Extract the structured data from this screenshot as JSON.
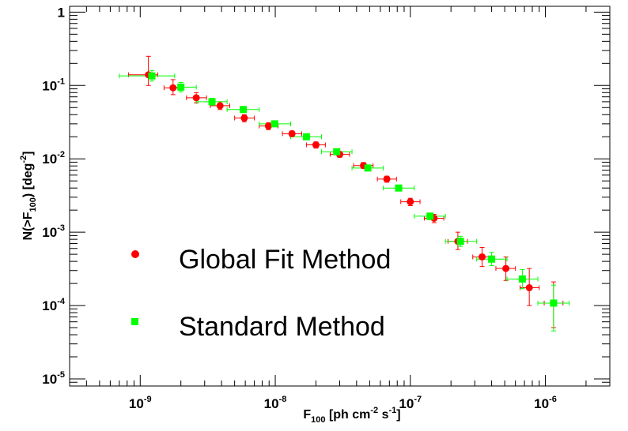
{
  "chart_data": {
    "type": "scatter",
    "title": "",
    "xlabel": "F_{100} [ph cm^{-2} s^{-1}]",
    "ylabel": "N(>F_{100}) [deg^{-2}]",
    "x_scale": "log",
    "y_scale": "log",
    "xlim": [
      3e-10,
      3e-06
    ],
    "ylim": [
      8e-06,
      1.2
    ],
    "grid": false,
    "legend_position": "bottom-left",
    "x_ticks": [
      "10^-9",
      "10^-8",
      "10^-7",
      "10^-6"
    ],
    "y_ticks": [
      "10^-5",
      "10^-4",
      "10^-3",
      "10^-2",
      "10^-1",
      "1"
    ],
    "series": [
      {
        "name": "Global Fit Method",
        "marker": "circle",
        "color": "#ff0000",
        "points": [
          {
            "x": 1.15e-09,
            "y": 0.14,
            "xlo": 8.2e-10,
            "xhi": 1.35e-09,
            "ylo": 0.1,
            "yhi": 0.25
          },
          {
            "x": 1.75e-09,
            "y": 0.093,
            "xlo": 1.5e-09,
            "xhi": 2.05e-09,
            "ylo": 0.075,
            "yhi": 0.12
          },
          {
            "x": 2.6e-09,
            "y": 0.068,
            "xlo": 2.2e-09,
            "xhi": 3.1e-09,
            "ylo": 0.058,
            "yhi": 0.08
          },
          {
            "x": 3.9e-09,
            "y": 0.053,
            "xlo": 3.3e-09,
            "xhi": 4.6e-09,
            "ylo": 0.047,
            "yhi": 0.06
          },
          {
            "x": 5.9e-09,
            "y": 0.036,
            "xlo": 5e-09,
            "xhi": 7e-09,
            "ylo": 0.032,
            "yhi": 0.04
          },
          {
            "x": 8.9e-09,
            "y": 0.028,
            "xlo": 7.6e-09,
            "xhi": 1.05e-08,
            "ylo": 0.025,
            "yhi": 0.031
          },
          {
            "x": 1.33e-08,
            "y": 0.022,
            "xlo": 1.13e-08,
            "xhi": 1.57e-08,
            "ylo": 0.02,
            "yhi": 0.024
          },
          {
            "x": 2e-08,
            "y": 0.0155,
            "xlo": 1.7e-08,
            "xhi": 2.35e-08,
            "ylo": 0.014,
            "yhi": 0.017
          },
          {
            "x": 3e-08,
            "y": 0.0115,
            "xlo": 2.55e-08,
            "xhi": 3.55e-08,
            "ylo": 0.0105,
            "yhi": 0.0126
          },
          {
            "x": 4.5e-08,
            "y": 0.0081,
            "xlo": 3.8e-08,
            "xhi": 5.3e-08,
            "ylo": 0.0074,
            "yhi": 0.0089
          },
          {
            "x": 6.7e-08,
            "y": 0.0053,
            "xlo": 5.7e-08,
            "xhi": 7.9e-08,
            "ylo": 0.0048,
            "yhi": 0.0058
          },
          {
            "x": 1e-07,
            "y": 0.0026,
            "xlo": 8.5e-08,
            "xhi": 1.18e-07,
            "ylo": 0.0023,
            "yhi": 0.0029
          },
          {
            "x": 1.5e-07,
            "y": 0.00155,
            "xlo": 1.27e-07,
            "xhi": 1.77e-07,
            "ylo": 0.00135,
            "yhi": 0.00175
          },
          {
            "x": 2.25e-07,
            "y": 0.00075,
            "xlo": 1.9e-07,
            "xhi": 2.65e-07,
            "ylo": 0.00058,
            "yhi": 0.001
          },
          {
            "x": 3.4e-07,
            "y": 0.00046,
            "xlo": 2.9e-07,
            "xhi": 4e-07,
            "ylo": 0.00034,
            "yhi": 0.00062
          },
          {
            "x": 5.1e-07,
            "y": 0.00032,
            "xlo": 4.3e-07,
            "xhi": 6e-07,
            "ylo": 0.00022,
            "yhi": 0.00046
          },
          {
            "x": 7.6e-07,
            "y": 0.000175,
            "xlo": 6.5e-07,
            "xhi": 9e-07,
            "ylo": 0.0001,
            "yhi": 0.00032
          },
          {
            "x": 1.15e-06,
            "y": 0.000108,
            "xlo": 9.8e-07,
            "xhi": 1.35e-06,
            "ylo": 5e-05,
            "yhi": 0.00021
          }
        ]
      },
      {
        "name": "Standard Method",
        "marker": "square",
        "color": "#00ff00",
        "points": [
          {
            "x": 1.22e-09,
            "y": 0.135,
            "xlo": 7e-10,
            "xhi": 1.8e-09,
            "ylo": 0.115,
            "yhi": 0.16
          },
          {
            "x": 2e-09,
            "y": 0.095,
            "xlo": 1.7e-09,
            "xhi": 2.6e-09,
            "ylo": 0.082,
            "yhi": 0.11
          },
          {
            "x": 3.4e-09,
            "y": 0.06,
            "xlo": 2.6e-09,
            "xhi": 4.4e-09,
            "ylo": 0.054,
            "yhi": 0.067
          },
          {
            "x": 5.8e-09,
            "y": 0.047,
            "xlo": 4.4e-09,
            "xhi": 7.6e-09,
            "ylo": 0.043,
            "yhi": 0.051
          },
          {
            "x": 9.9e-09,
            "y": 0.03,
            "xlo": 7.6e-09,
            "xhi": 1.3e-08,
            "ylo": 0.0278,
            "yhi": 0.0325
          },
          {
            "x": 1.7e-08,
            "y": 0.02,
            "xlo": 1.3e-08,
            "xhi": 2.2e-08,
            "ylo": 0.0186,
            "yhi": 0.0215
          },
          {
            "x": 2.85e-08,
            "y": 0.0125,
            "xlo": 2.2e-08,
            "xhi": 3.7e-08,
            "ylo": 0.0116,
            "yhi": 0.0135
          },
          {
            "x": 4.85e-08,
            "y": 0.0075,
            "xlo": 3.7e-08,
            "xhi": 6.3e-08,
            "ylo": 0.0069,
            "yhi": 0.0081
          },
          {
            "x": 8.2e-08,
            "y": 0.004,
            "xlo": 6.3e-08,
            "xhi": 1.07e-07,
            "ylo": 0.0037,
            "yhi": 0.0043
          },
          {
            "x": 1.4e-07,
            "y": 0.00165,
            "xlo": 1.07e-07,
            "xhi": 1.82e-07,
            "ylo": 0.00148,
            "yhi": 0.00183
          },
          {
            "x": 2.35e-07,
            "y": 0.00075,
            "xlo": 1.82e-07,
            "xhi": 3.1e-07,
            "ylo": 0.00064,
            "yhi": 0.00088
          },
          {
            "x": 4e-07,
            "y": 0.00043,
            "xlo": 3.1e-07,
            "xhi": 5.2e-07,
            "ylo": 0.00035,
            "yhi": 0.00053
          },
          {
            "x": 6.75e-07,
            "y": 0.00023,
            "xlo": 5.2e-07,
            "xhi": 8.8e-07,
            "ylo": 0.00017,
            "yhi": 0.00031
          },
          {
            "x": 1.15e-06,
            "y": 0.000108,
            "xlo": 8.8e-07,
            "xhi": 1.5e-06,
            "ylo": 4.5e-05,
            "yhi": 0.00019
          }
        ]
      }
    ]
  }
}
